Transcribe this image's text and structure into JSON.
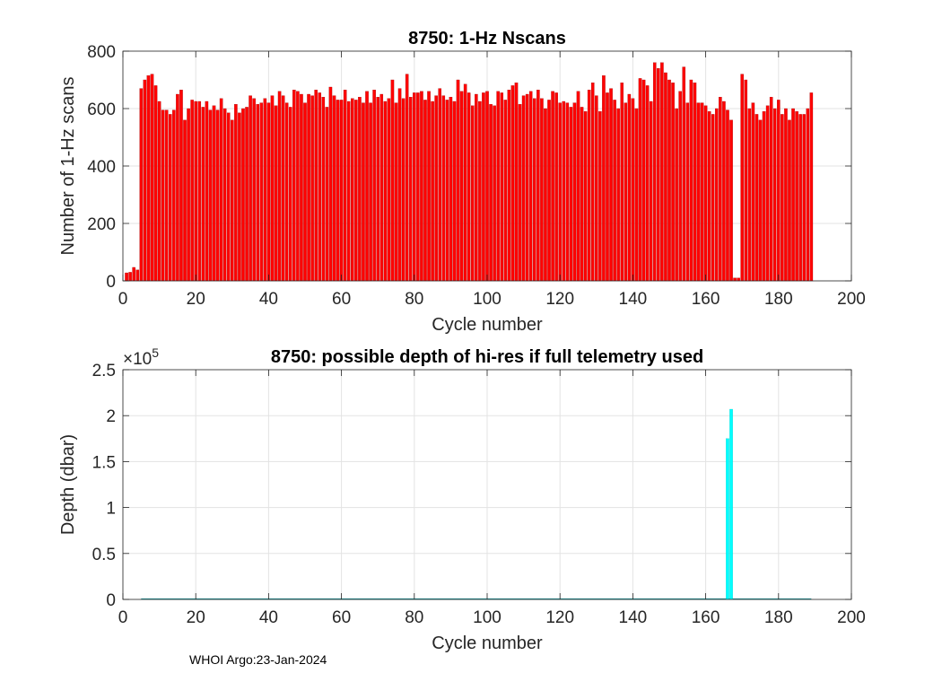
{
  "chart_data": [
    {
      "type": "bar",
      "title": "8750: 1-Hz Nscans",
      "xlabel": "Cycle number",
      "ylabel": "Number of 1-Hz scans",
      "xlim": [
        0,
        200
      ],
      "ylim": [
        0,
        800
      ],
      "xticks": [
        "0",
        "20",
        "40",
        "60",
        "80",
        "100",
        "120",
        "140",
        "160",
        "180",
        "200"
      ],
      "yticks": [
        "0",
        "200",
        "400",
        "600",
        "800"
      ],
      "grid": true,
      "color": "#ff0000",
      "x": [
        1,
        2,
        3,
        4,
        5,
        6,
        7,
        8,
        9,
        10,
        11,
        12,
        13,
        14,
        15,
        16,
        17,
        18,
        19,
        20,
        21,
        22,
        23,
        24,
        25,
        26,
        27,
        28,
        29,
        30,
        31,
        32,
        33,
        34,
        35,
        36,
        37,
        38,
        39,
        40,
        41,
        42,
        43,
        44,
        45,
        46,
        47,
        48,
        49,
        50,
        51,
        52,
        53,
        54,
        55,
        56,
        57,
        58,
        59,
        60,
        61,
        62,
        63,
        64,
        65,
        66,
        67,
        68,
        69,
        70,
        71,
        72,
        73,
        74,
        75,
        76,
        77,
        78,
        79,
        80,
        81,
        82,
        83,
        84,
        85,
        86,
        87,
        88,
        89,
        90,
        91,
        92,
        93,
        94,
        95,
        96,
        97,
        98,
        99,
        100,
        101,
        102,
        103,
        104,
        105,
        106,
        107,
        108,
        109,
        110,
        111,
        112,
        113,
        114,
        115,
        116,
        117,
        118,
        119,
        120,
        121,
        122,
        123,
        124,
        125,
        126,
        127,
        128,
        129,
        130,
        131,
        132,
        133,
        134,
        135,
        136,
        137,
        138,
        139,
        140,
        141,
        142,
        143,
        144,
        145,
        146,
        147,
        148,
        149,
        150,
        151,
        152,
        153,
        154,
        155,
        156,
        157,
        158,
        159,
        160,
        161,
        162,
        163,
        164,
        165,
        166,
        167,
        168,
        169,
        170,
        171,
        172,
        173,
        174,
        175,
        176,
        177,
        178,
        179,
        180,
        181,
        182,
        183,
        184,
        185,
        186,
        187,
        188,
        189
      ],
      "values": [
        28,
        30,
        47,
        38,
        670,
        700,
        715,
        720,
        680,
        625,
        595,
        595,
        580,
        595,
        650,
        665,
        560,
        600,
        630,
        625,
        625,
        605,
        625,
        595,
        610,
        595,
        635,
        600,
        585,
        560,
        615,
        585,
        600,
        605,
        645,
        635,
        615,
        620,
        635,
        620,
        645,
        610,
        660,
        645,
        620,
        605,
        665,
        660,
        650,
        620,
        650,
        645,
        665,
        655,
        640,
        605,
        675,
        645,
        630,
        630,
        665,
        625,
        635,
        630,
        640,
        620,
        660,
        620,
        665,
        640,
        650,
        625,
        635,
        700,
        620,
        670,
        635,
        720,
        640,
        655,
        655,
        660,
        630,
        660,
        625,
        645,
        670,
        645,
        630,
        640,
        625,
        700,
        660,
        685,
        655,
        610,
        650,
        625,
        655,
        660,
        615,
        610,
        660,
        655,
        630,
        665,
        680,
        690,
        615,
        645,
        650,
        660,
        635,
        665,
        635,
        600,
        630,
        660,
        655,
        620,
        625,
        620,
        605,
        620,
        660,
        605,
        590,
        665,
        690,
        645,
        590,
        715,
        655,
        670,
        630,
        600,
        690,
        620,
        650,
        635,
        600,
        705,
        700,
        680,
        625,
        760,
        740,
        760,
        725,
        700,
        690,
        600,
        660,
        745,
        620,
        700,
        690,
        620,
        620,
        610,
        590,
        580,
        600,
        640,
        625,
        595,
        560,
        10,
        10,
        720,
        700,
        600,
        620,
        580,
        560,
        590,
        610,
        640,
        600,
        630,
        580,
        600,
        560,
        600,
        590,
        580,
        580,
        600,
        655
      ]
    },
    {
      "type": "bar",
      "title": "8750: possible depth of hi-res if full telemetry used",
      "xlabel": "Cycle number",
      "ylabel": "Depth (dbar)",
      "multiplier": "×10",
      "multiplier_exponent": "5",
      "xlim": [
        0,
        200
      ],
      "ylim": [
        0,
        250000
      ],
      "xticks": [
        "0",
        "20",
        "40",
        "60",
        "80",
        "100",
        "120",
        "140",
        "160",
        "180",
        "200"
      ],
      "yticks": [
        "0",
        "0.5",
        "1",
        "1.5",
        "2",
        "2.5"
      ],
      "grid": true,
      "color": "#00ffff",
      "x": [
        166,
        167
      ],
      "values": [
        175000,
        207000
      ],
      "baseline_range": [
        5,
        189
      ]
    }
  ],
  "footer": "WHOI Argo:23-Jan-2024"
}
